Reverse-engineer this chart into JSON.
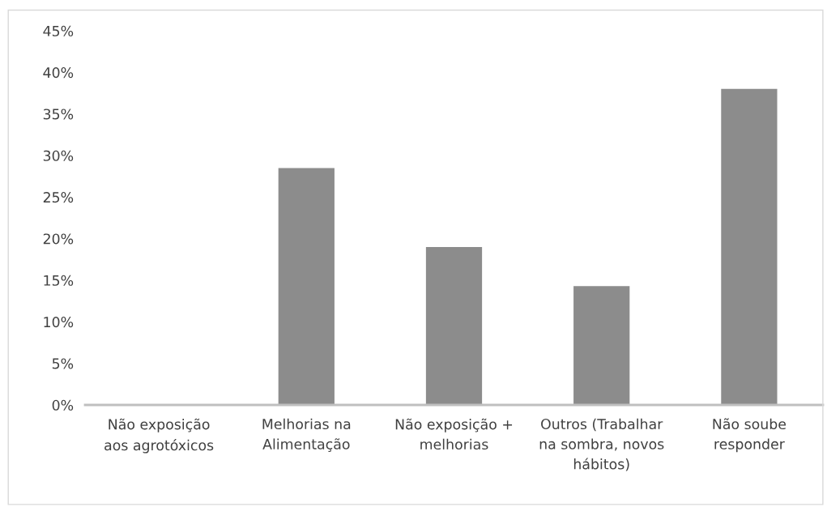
{
  "chart_data": {
    "type": "bar",
    "categories": [
      "Não exposição\naos agrotóxicos",
      "Melhorias na\nAlimentação",
      "Não exposição +\nmelhorias",
      "Outros (Trabalhar\nna sombra, novos\nhábitos)",
      "Não soube\nresponder"
    ],
    "values": [
      0,
      28.5,
      19,
      14.3,
      38
    ],
    "color": "#8c8c8c",
    "ylim": [
      0,
      45
    ],
    "yticks": [
      {
        "value": 0,
        "label": "0%"
      },
      {
        "value": 5,
        "label": "5%"
      },
      {
        "value": 10,
        "label": "10%"
      },
      {
        "value": 15,
        "label": "15%"
      },
      {
        "value": 20,
        "label": "20%"
      },
      {
        "value": 25,
        "label": "25%"
      },
      {
        "value": 30,
        "label": "30%"
      },
      {
        "value": 35,
        "label": "35%"
      },
      {
        "value": 40,
        "label": "40%"
      },
      {
        "value": 45,
        "label": "45%"
      }
    ],
    "grid": false,
    "legend": false
  }
}
